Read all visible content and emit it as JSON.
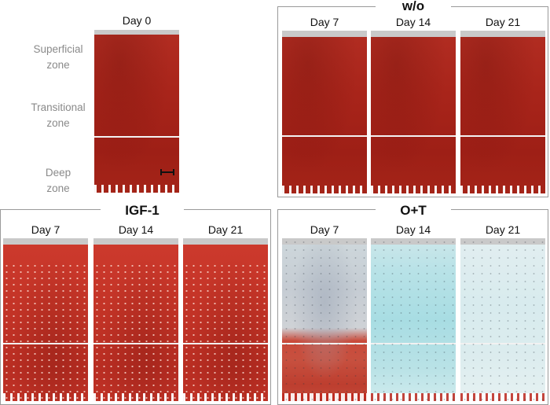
{
  "day0": {
    "label": "Day 0",
    "zones": {
      "superficial": [
        "Superficial",
        "zone"
      ],
      "transitional": [
        "Transitional",
        "zone"
      ],
      "deep": [
        "Deep",
        "zone"
      ]
    }
  },
  "groups": [
    {
      "title": "w/o",
      "stain": "safranin-o",
      "days": [
        "Day 7",
        "Day 14",
        "Day 21"
      ]
    },
    {
      "title": "IGF-1",
      "stain": "safranin-o",
      "days": [
        "Day 7",
        "Day 14",
        "Day 21"
      ]
    },
    {
      "title": "O+T",
      "stain": "safranin-o / fast green",
      "days": [
        "Day 7",
        "Day 14",
        "Day 21"
      ]
    }
  ],
  "colors": {
    "safranin_red": "#a8241a",
    "fast_green_teal": "#a8dde3",
    "zone_label_gray": "#8a8a8a",
    "frame_gray": "#9a9a9a"
  }
}
